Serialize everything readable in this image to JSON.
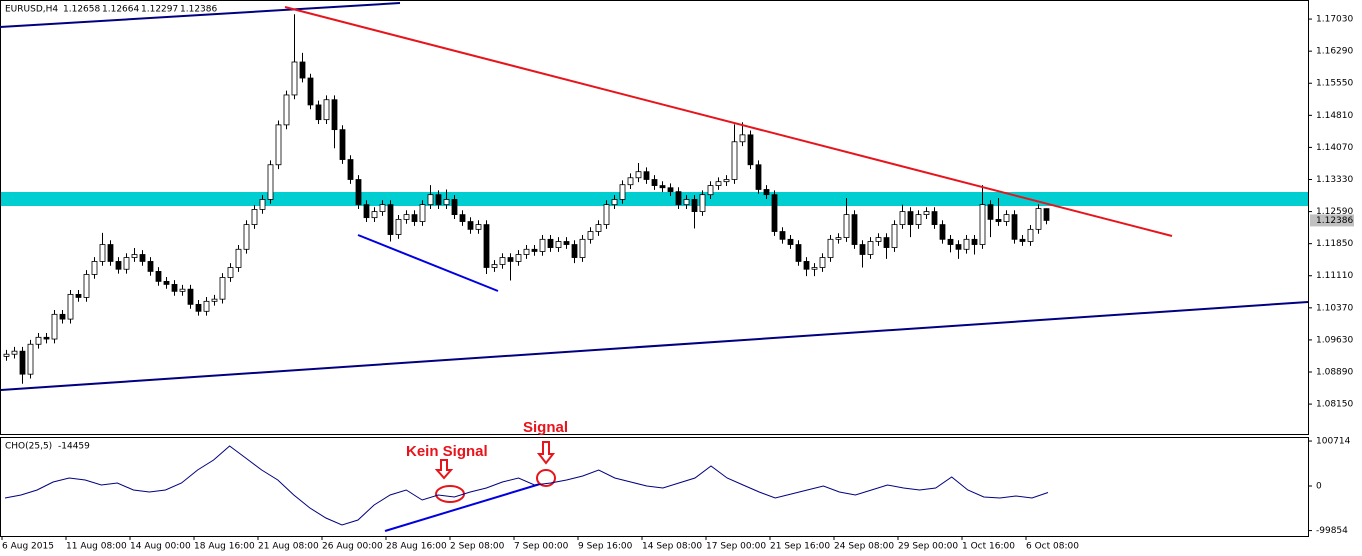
{
  "chart_data": [
    {
      "type": "candlestick",
      "symbol": "EURUSD,H4",
      "open": [
        1.0925,
        1.093,
        1.0937,
        1.0884,
        1.0953,
        1.0969,
        1.0965,
        1.1022,
        1.1011,
        1.1068,
        1.1061,
        1.1114,
        1.1144,
        1.1183,
        1.1144,
        1.1126,
        1.1153,
        1.116,
        1.1144,
        1.1121,
        1.1098,
        1.1091,
        1.1075,
        1.108,
        1.1045,
        1.1029,
        1.1052,
        1.1057,
        1.1107,
        1.113,
        1.1172,
        1.1229,
        1.1264,
        1.1287,
        1.1367,
        1.1459,
        1.1528,
        1.1604,
        1.1567,
        1.1505,
        1.1471,
        1.1517,
        1.1448,
        1.1379,
        1.1333,
        1.1275,
        1.1245,
        1.1259,
        1.1275,
        1.1206,
        1.1241,
        1.1252,
        1.1236,
        1.1275,
        1.1298,
        1.1275,
        1.1287,
        1.1252,
        1.1236,
        1.1218,
        1.1229,
        1.113,
        1.1137,
        1.1153,
        1.1144,
        1.116,
        1.1172,
        1.1167,
        1.1195,
        1.1176,
        1.119,
        1.1183,
        1.1153,
        1.1195,
        1.1213,
        1.1229,
        1.1275,
        1.1287,
        1.1321,
        1.1337,
        1.1351,
        1.1333,
        1.1319,
        1.1314,
        1.1305,
        1.1275,
        1.1287,
        1.1259,
        1.1298,
        1.1319,
        1.1328,
        1.1333,
        1.142,
        1.1436,
        1.1367,
        1.131,
        1.1298,
        1.1213,
        1.1195,
        1.1183,
        1.1144,
        1.1126,
        1.113,
        1.1153,
        1.1195,
        1.1199,
        1.1252,
        1.1183,
        1.116,
        1.119,
        1.1199,
        1.1176,
        1.1229,
        1.1259,
        1.1229,
        1.1252,
        1.1259,
        1.1229,
        1.1195,
        1.1183,
        1.1172,
        1.1195,
        1.1183,
        1.1275,
        1.1241,
        1.1236,
        1.1252,
        1.1195,
        1.119,
        1.1218,
        1.12658
      ],
      "high": [
        1.094,
        1.0947,
        1.0947,
        1.0963,
        1.0979,
        1.0979,
        1.1032,
        1.1032,
        1.1078,
        1.1078,
        1.1124,
        1.1154,
        1.121,
        1.1193,
        1.1154,
        1.1163,
        1.1175,
        1.117,
        1.1154,
        1.1131,
        1.1108,
        1.1101,
        1.109,
        1.109,
        1.1055,
        1.1062,
        1.1067,
        1.1117,
        1.114,
        1.1182,
        1.1239,
        1.1274,
        1.1297,
        1.1377,
        1.1469,
        1.1538,
        1.1714,
        1.1625,
        1.1577,
        1.1515,
        1.1527,
        1.1527,
        1.1458,
        1.1389,
        1.1343,
        1.1285,
        1.1269,
        1.1285,
        1.1285,
        1.1251,
        1.1262,
        1.1262,
        1.1285,
        1.132,
        1.1308,
        1.131,
        1.1297,
        1.1262,
        1.1246,
        1.1239,
        1.1239,
        1.1147,
        1.1163,
        1.1163,
        1.117,
        1.1182,
        1.1182,
        1.1205,
        1.1205,
        1.12,
        1.12,
        1.1193,
        1.1205,
        1.1223,
        1.1239,
        1.1285,
        1.1297,
        1.1331,
        1.1347,
        1.1371,
        1.1361,
        1.1343,
        1.1329,
        1.1324,
        1.1315,
        1.1297,
        1.1297,
        1.1308,
        1.1329,
        1.1338,
        1.1343,
        1.146,
        1.1465,
        1.1446,
        1.1377,
        1.132,
        1.1308,
        1.1223,
        1.1205,
        1.1193,
        1.1154,
        1.114,
        1.1163,
        1.1205,
        1.1209,
        1.129,
        1.1262,
        1.1193,
        1.12,
        1.1209,
        1.1209,
        1.1239,
        1.1275,
        1.1269,
        1.1262,
        1.1269,
        1.1269,
        1.1239,
        1.1205,
        1.1193,
        1.1205,
        1.1205,
        1.132,
        1.1285,
        1.129,
        1.1262,
        1.1262,
        1.1205,
        1.1228,
        1.1276,
        1.12664
      ],
      "low": [
        1.0915,
        1.092,
        1.0862,
        1.0874,
        1.0943,
        1.0955,
        1.0955,
        1.1001,
        1.1001,
        1.1051,
        1.1051,
        1.1104,
        1.1134,
        1.1134,
        1.1116,
        1.1116,
        1.1143,
        1.1134,
        1.1111,
        1.1088,
        1.1081,
        1.1065,
        1.1065,
        1.1035,
        1.1019,
        1.1019,
        1.1042,
        1.1047,
        1.1097,
        1.112,
        1.1162,
        1.1219,
        1.1254,
        1.1277,
        1.1357,
        1.1449,
        1.1518,
        1.1557,
        1.1495,
        1.1461,
        1.1461,
        1.1405,
        1.1369,
        1.1323,
        1.1265,
        1.1235,
        1.1235,
        1.1249,
        1.119,
        1.1196,
        1.1231,
        1.1226,
        1.1226,
        1.1265,
        1.1265,
        1.1265,
        1.1242,
        1.1226,
        1.1208,
        1.1208,
        1.1115,
        1.112,
        1.1127,
        1.11,
        1.1134,
        1.115,
        1.1157,
        1.1157,
        1.1166,
        1.1166,
        1.1173,
        1.114,
        1.1143,
        1.1185,
        1.1203,
        1.1219,
        1.1265,
        1.1277,
        1.1311,
        1.1327,
        1.1323,
        1.1309,
        1.1304,
        1.1295,
        1.1265,
        1.1265,
        1.122,
        1.1249,
        1.1288,
        1.1309,
        1.1318,
        1.1323,
        1.141,
        1.1357,
        1.13,
        1.1288,
        1.1203,
        1.1185,
        1.1173,
        1.1134,
        1.111,
        1.111,
        1.112,
        1.1143,
        1.1185,
        1.1189,
        1.1173,
        1.113,
        1.115,
        1.118,
        1.115,
        1.1166,
        1.1219,
        1.12,
        1.1219,
        1.1242,
        1.1219,
        1.1185,
        1.1165,
        1.115,
        1.1162,
        1.116,
        1.1173,
        1.12,
        1.1226,
        1.1226,
        1.1185,
        1.118,
        1.118,
        1.1208,
        1.12297
      ],
      "close": [
        1.093,
        1.0937,
        1.0884,
        1.0953,
        1.0969,
        1.0965,
        1.1022,
        1.1011,
        1.1068,
        1.1061,
        1.1114,
        1.1144,
        1.1183,
        1.1144,
        1.1126,
        1.1153,
        1.116,
        1.1144,
        1.1121,
        1.1098,
        1.1091,
        1.1075,
        1.108,
        1.1045,
        1.1029,
        1.1052,
        1.1057,
        1.1107,
        1.113,
        1.1172,
        1.1229,
        1.1264,
        1.1287,
        1.1367,
        1.1459,
        1.1528,
        1.1604,
        1.1567,
        1.1505,
        1.1471,
        1.1517,
        1.1448,
        1.1379,
        1.1333,
        1.1275,
        1.1245,
        1.1259,
        1.1275,
        1.1206,
        1.1241,
        1.1252,
        1.1236,
        1.1275,
        1.1298,
        1.1275,
        1.1287,
        1.1252,
        1.1236,
        1.1218,
        1.1229,
        1.113,
        1.1137,
        1.1153,
        1.1144,
        1.116,
        1.1172,
        1.1167,
        1.1195,
        1.1176,
        1.119,
        1.1183,
        1.1153,
        1.1195,
        1.1213,
        1.1229,
        1.1275,
        1.1287,
        1.1321,
        1.1337,
        1.1351,
        1.1333,
        1.1319,
        1.1314,
        1.1305,
        1.1275,
        1.1287,
        1.1259,
        1.1298,
        1.1319,
        1.1328,
        1.1333,
        1.142,
        1.1436,
        1.1367,
        1.131,
        1.1298,
        1.1213,
        1.1195,
        1.1183,
        1.1144,
        1.1126,
        1.113,
        1.1153,
        1.1195,
        1.1199,
        1.1252,
        1.1183,
        1.116,
        1.119,
        1.1199,
        1.1176,
        1.1229,
        1.1259,
        1.1229,
        1.1252,
        1.1259,
        1.1229,
        1.1195,
        1.1183,
        1.1172,
        1.1195,
        1.1183,
        1.1275,
        1.1241,
        1.1236,
        1.1252,
        1.1195,
        1.119,
        1.1218,
        1.1266,
        1.12386
      ],
      "up_color": "#ffffff",
      "down_color": "#000000",
      "edge_color": "#000000",
      "ylim": [
        1.0746,
        1.1747
      ],
      "yticks": [
        {
          "value": 1.1703,
          "label": "1.17030"
        },
        {
          "value": 1.1629,
          "label": "1.16290"
        },
        {
          "value": 1.1555,
          "label": "1.15550"
        },
        {
          "value": 1.1481,
          "label": "1.14810"
        },
        {
          "value": 1.1407,
          "label": "1.14070"
        },
        {
          "value": 1.1333,
          "label": "1.13330"
        },
        {
          "value": 1.1259,
          "label": "1.12590"
        },
        {
          "value": 1.1185,
          "label": "1.11850"
        },
        {
          "value": 1.1111,
          "label": "1.11110"
        },
        {
          "value": 1.1037,
          "label": "1.10370"
        },
        {
          "value": 1.0963,
          "label": "1.09630"
        },
        {
          "value": 1.0889,
          "label": "1.08890"
        },
        {
          "value": 1.0815,
          "label": "1.08150"
        }
      ],
      "x_labels": [
        "6 Aug 2015",
        "11 Aug 08:00",
        "14 Aug 00:00",
        "18 Aug 16:00",
        "21 Aug 08:00",
        "26 Aug 00:00",
        "28 Aug 16:00",
        "2 Sep 08:00",
        "7 Sep 00:00",
        "9 Sep 16:00",
        "14 Sep 08:00",
        "17 Sep 00:00",
        "21 Sep 16:00",
        "24 Sep 08:00",
        "29 Sep 00:00",
        "1 Oct 16:00",
        "6 Oct 08:00"
      ]
    },
    {
      "type": "line",
      "name": "CHO(25,5)",
      "color": "#000080",
      "values": [
        -26900,
        -20200,
        -9000,
        9000,
        17900,
        13400,
        2200,
        6700,
        -9000,
        -13400,
        -9000,
        6700,
        35800,
        58200,
        89600,
        62700,
        35800,
        13400,
        -20200,
        -49300,
        -71700,
        -87400,
        -76200,
        -42600,
        -20200,
        -9000,
        -31400,
        -20200,
        -24600,
        -13400,
        -4500,
        9000,
        17900,
        2200,
        6700,
        13400,
        22400,
        35800,
        17900,
        9000,
        0,
        -4500,
        6700,
        17900,
        44800,
        17900,
        2200,
        -13400,
        -26900,
        -17900,
        -9000,
        0,
        -13400,
        -20200,
        -9000,
        2200,
        -4500,
        -9000,
        -4500,
        20200,
        -9000,
        -24600,
        -26900,
        -22400,
        -26900,
        -14459
      ],
      "ylim": [
        -112000,
        109760
      ],
      "yticks": [
        100714,
        0,
        -99854
      ]
    }
  ],
  "annotations": {
    "kein_signal": "Kein Signal",
    "signal": "Signal"
  }
}
